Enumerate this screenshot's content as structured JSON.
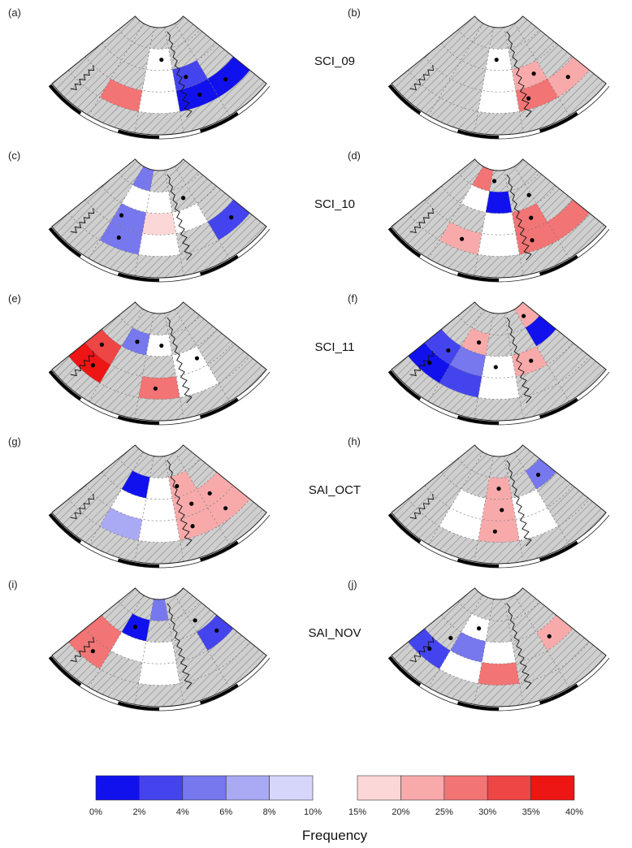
{
  "colors": {
    "land_hatch": "#c8c8c8",
    "blue_scale": [
      "#1111ee",
      "#4444ee",
      "#7777ee",
      "#a9a9f4",
      "#d6d6fb"
    ],
    "red_scale": [
      "#fcd7d7",
      "#f8aaaa",
      "#f27474",
      "#ee4545",
      "#ee1515"
    ]
  },
  "rows": [
    {
      "label": "SCI_09"
    },
    {
      "label": "SCI_10"
    },
    {
      "label": "SCI_11"
    },
    {
      "label": "SAI_OCT"
    },
    {
      "label": "SAI_NOV"
    }
  ],
  "panels": [
    {
      "label": "(a)",
      "cells": [
        {
          "r": 3,
          "s": 3,
          "c": "b0"
        },
        {
          "r": 3,
          "s": 4,
          "c": "b0"
        },
        {
          "r": 2,
          "s": 3,
          "c": "b1"
        },
        {
          "r": 3,
          "s": 1,
          "c": "r2"
        },
        {
          "r": 1,
          "s": 2,
          "c": "w"
        },
        {
          "r": 2,
          "s": 2,
          "c": "w"
        },
        {
          "r": 3,
          "s": 2,
          "c": "w"
        }
      ],
      "dots": [
        {
          "r": 3.5,
          "s": 3.6
        },
        {
          "r": 2.5,
          "s": 3.4
        },
        {
          "r": 3.5,
          "s": 4.4
        },
        {
          "r": 1.5,
          "s": 2.6
        }
      ]
    },
    {
      "label": "(b)",
      "cells": [
        {
          "r": 3,
          "s": 3,
          "c": "r2"
        },
        {
          "r": 3,
          "s": 4,
          "c": "r1"
        },
        {
          "r": 2,
          "s": 3,
          "c": "r1"
        },
        {
          "r": 1,
          "s": 2,
          "c": "w"
        },
        {
          "r": 2,
          "s": 2,
          "c": "w"
        },
        {
          "r": 3,
          "s": 2,
          "c": "w"
        }
      ],
      "dots": [
        {
          "r": 3.5,
          "s": 3.3
        },
        {
          "r": 3.5,
          "s": 4.5
        },
        {
          "r": 2.5,
          "s": 3.7
        },
        {
          "r": 1.5,
          "s": 2.4
        }
      ]
    },
    {
      "label": "(c)",
      "cells": [
        {
          "r": 3,
          "s": 1,
          "c": "b2"
        },
        {
          "r": 2,
          "s": 1,
          "c": "b2"
        },
        {
          "r": 0,
          "s": 1,
          "c": "b2"
        },
        {
          "r": 3,
          "s": 4,
          "c": "b1"
        },
        {
          "r": 2,
          "s": 2,
          "c": "r0"
        },
        {
          "r": 1,
          "s": 1,
          "c": "w"
        },
        {
          "r": 1,
          "s": 2,
          "c": "w"
        },
        {
          "r": 2,
          "s": 3,
          "c": "w"
        },
        {
          "r": 3,
          "s": 2,
          "c": "w"
        }
      ],
      "dots": [
        {
          "r": 3.5,
          "s": 1.4
        },
        {
          "r": 2.5,
          "s": 1.2
        },
        {
          "r": 3.5,
          "s": 4.6
        },
        {
          "r": 1.5,
          "s": 3.6
        }
      ]
    },
    {
      "label": "(d)",
      "cells": [
        {
          "r": 3,
          "s": 1,
          "c": "r1"
        },
        {
          "r": 3,
          "s": 3,
          "c": "r2"
        },
        {
          "r": 3,
          "s": 4,
          "c": "r2"
        },
        {
          "r": 2,
          "s": 3,
          "c": "r2"
        },
        {
          "r": 1,
          "s": 2,
          "c": "b0"
        },
        {
          "r": 0,
          "s": 1,
          "c": "r2"
        },
        {
          "r": 1,
          "s": 1,
          "c": "w"
        },
        {
          "r": 2,
          "s": 2,
          "c": "w"
        },
        {
          "r": 3,
          "s": 2,
          "c": "w"
        }
      ],
      "dots": [
        {
          "r": 3.5,
          "s": 1.5
        },
        {
          "r": 3.5,
          "s": 3.4
        },
        {
          "r": 2.5,
          "s": 3.6
        },
        {
          "r": 0.5,
          "s": 2.2
        },
        {
          "r": 1.5,
          "s": 3.9
        }
      ]
    },
    {
      "label": "(e)",
      "cells": [
        {
          "r": 3,
          "s": 0,
          "c": "r4"
        },
        {
          "r": 2,
          "s": 0,
          "c": "r3"
        },
        {
          "r": 1,
          "s": 1,
          "c": "b2"
        },
        {
          "r": 3,
          "s": 2,
          "c": "r2"
        },
        {
          "r": 1,
          "s": 2,
          "c": "w"
        },
        {
          "r": 2,
          "s": 3,
          "c": "w"
        },
        {
          "r": 3,
          "s": 3,
          "c": "w"
        }
      ],
      "dots": [
        {
          "r": 3.5,
          "s": 0.6
        },
        {
          "r": 2.5,
          "s": 0.4
        },
        {
          "r": 1.5,
          "s": 1.5
        },
        {
          "r": 3.5,
          "s": 2.4
        },
        {
          "r": 1.5,
          "s": 2.6
        },
        {
          "r": 2.5,
          "s": 3.8
        }
      ]
    },
    {
      "label": "(f)",
      "cells": [
        {
          "r": 3,
          "s": 0,
          "c": "b0"
        },
        {
          "r": 3,
          "s": 1,
          "c": "b1"
        },
        {
          "r": 2,
          "s": 0,
          "c": "b1"
        },
        {
          "r": 2,
          "s": 1,
          "c": "b2"
        },
        {
          "r": 1,
          "s": 1,
          "c": "r1"
        },
        {
          "r": 2,
          "s": 3,
          "c": "r1"
        },
        {
          "r": 1,
          "s": 4,
          "c": "b0"
        },
        {
          "r": 0,
          "s": 4,
          "c": "r1"
        },
        {
          "r": 2,
          "s": 2,
          "c": "w"
        },
        {
          "r": 3,
          "s": 2,
          "c": "w"
        }
      ],
      "dots": [
        {
          "r": 3.5,
          "s": 0.5
        },
        {
          "r": 2.5,
          "s": 0.7
        },
        {
          "r": 1.5,
          "s": 1.6
        },
        {
          "r": 2.5,
          "s": 2.4
        },
        {
          "r": 0.5,
          "s": 4.3
        },
        {
          "r": 2.5,
          "s": 3.6
        }
      ]
    },
    {
      "label": "(g)",
      "cells": [
        {
          "r": 3,
          "s": 1,
          "c": "b3"
        },
        {
          "r": 1,
          "s": 1,
          "c": "b0"
        },
        {
          "r": 3,
          "s": 3,
          "c": "r1"
        },
        {
          "r": 2,
          "s": 3,
          "c": "r1"
        },
        {
          "r": 1,
          "s": 3,
          "c": "r1"
        },
        {
          "r": 3,
          "s": 4,
          "c": "r1"
        },
        {
          "r": 2,
          "s": 4,
          "c": "r1"
        },
        {
          "r": 2,
          "s": 1,
          "c": "w"
        },
        {
          "r": 2,
          "s": 2,
          "c": "w"
        },
        {
          "r": 3,
          "s": 2,
          "c": "w"
        },
        {
          "r": 1,
          "s": 2,
          "c": "w"
        }
      ],
      "dots": [
        {
          "r": 3.5,
          "s": 3.4
        },
        {
          "r": 2.5,
          "s": 3.6
        },
        {
          "r": 3.5,
          "s": 4.4
        },
        {
          "r": 2.5,
          "s": 4.3
        },
        {
          "r": 1.5,
          "s": 3.3
        }
      ]
    },
    {
      "label": "(h)",
      "cells": [
        {
          "r": 3,
          "s": 2,
          "c": "r1"
        },
        {
          "r": 2,
          "s": 2,
          "c": "r1"
        },
        {
          "r": 1,
          "s": 2,
          "c": "r1"
        },
        {
          "r": 1,
          "s": 4,
          "c": "b2"
        },
        {
          "r": 3,
          "s": 1,
          "c": "w"
        },
        {
          "r": 2,
          "s": 1,
          "c": "w"
        },
        {
          "r": 2,
          "s": 3,
          "c": "w"
        },
        {
          "r": 3,
          "s": 3,
          "c": "w"
        }
      ],
      "dots": [
        {
          "r": 3.5,
          "s": 2.4
        },
        {
          "r": 2.5,
          "s": 2.6
        },
        {
          "r": 1.5,
          "s": 2.5
        },
        {
          "r": 1.5,
          "s": 4.4
        }
      ]
    },
    {
      "label": "(i)",
      "cells": [
        {
          "r": 3,
          "s": 0,
          "c": "r2"
        },
        {
          "r": 2,
          "s": 0,
          "c": "r2"
        },
        {
          "r": 1,
          "s": 1,
          "c": "b0"
        },
        {
          "r": 0,
          "s": 2,
          "c": "b2"
        },
        {
          "r": 2,
          "s": 4,
          "c": "b1"
        },
        {
          "r": 2,
          "s": 1,
          "c": "w"
        },
        {
          "r": 2,
          "s": 2,
          "c": "w"
        },
        {
          "r": 3,
          "s": 2,
          "c": "w"
        }
      ],
      "dots": [
        {
          "r": 3.5,
          "s": 0.6
        },
        {
          "r": 1.5,
          "s": 1.4
        },
        {
          "r": 2.5,
          "s": 4.6
        },
        {
          "r": 1.5,
          "s": 4.2
        }
      ]
    },
    {
      "label": "(j)",
      "cells": [
        {
          "r": 3,
          "s": 0,
          "c": "b1"
        },
        {
          "r": 2,
          "s": 1,
          "c": "b2"
        },
        {
          "r": 3,
          "s": 2,
          "c": "r2"
        },
        {
          "r": 2,
          "s": 4,
          "c": "r1"
        },
        {
          "r": 1,
          "s": 1,
          "c": "w"
        },
        {
          "r": 2,
          "s": 2,
          "c": "w"
        },
        {
          "r": 3,
          "s": 1,
          "c": "w"
        }
      ],
      "dots": [
        {
          "r": 3.5,
          "s": 0.5
        },
        {
          "r": 2.5,
          "s": 0.8
        },
        {
          "r": 1.5,
          "s": 1.6
        },
        {
          "r": 2.5,
          "s": 4.3
        }
      ]
    }
  ],
  "legend": {
    "blue_ticks": [
      "0%",
      "2%",
      "4%",
      "6%",
      "8%",
      "10%"
    ],
    "red_ticks": [
      "15%",
      "20%",
      "25%",
      "30%",
      "35%",
      "40%"
    ],
    "title": "Frequency"
  }
}
